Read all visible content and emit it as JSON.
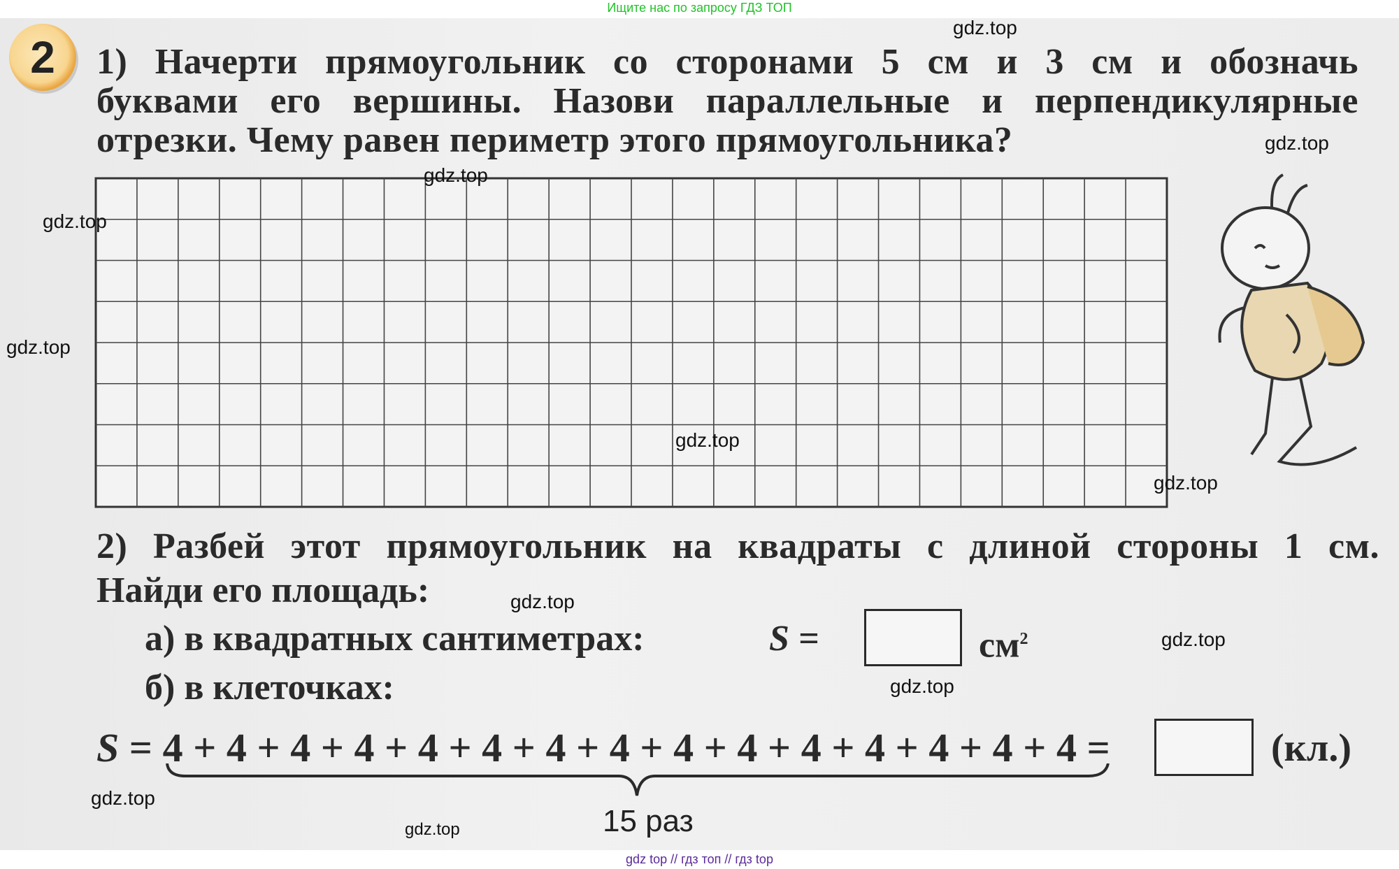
{
  "banner": "Ищите нас по запросу ГДЗ ТОП",
  "footer": "gdz top // гдз топ // гдз top",
  "task": {
    "number": "2",
    "part1_lines": [
      "1) Начерти прямоугольник со сторонами 5 см и 3 см и обозначь",
      "буквами его вершины. Назови параллельные и перпендикулярные",
      "отрезки. Чему равен периметр этого прямоугольника?"
    ],
    "grid": {
      "columns": 26,
      "rows": 8
    },
    "part2_line1": "2) Разбей этот прямоугольник на квадраты с длиной стороны 1 см.",
    "part2_line2": "Найди его площадь:",
    "item_a": "а) в квадратных сантиметрах:",
    "item_a_formula": "S =",
    "item_a_unit": "см",
    "item_a_unit_sup": "2",
    "item_b": "б) в клеточках:",
    "equation": {
      "lhs": "S",
      "eq": "=",
      "terms": [
        "4",
        "4",
        "4",
        "4",
        "4",
        "4",
        "4",
        "4",
        "4",
        "4",
        "4",
        "4",
        "4",
        "4",
        "4"
      ],
      "plus": "+",
      "result_eq": "=",
      "unit": "(кл.)",
      "brace_label": "15 раз"
    }
  },
  "watermarks": [
    "gdz.top",
    "gdz.top",
    "gdz.top",
    "gdz.top",
    "gdz.top",
    "gdz.top",
    "gdz.top",
    "gdz.top",
    "gdz.top",
    "gdz.top",
    "gdz.top",
    "gdz.top"
  ]
}
